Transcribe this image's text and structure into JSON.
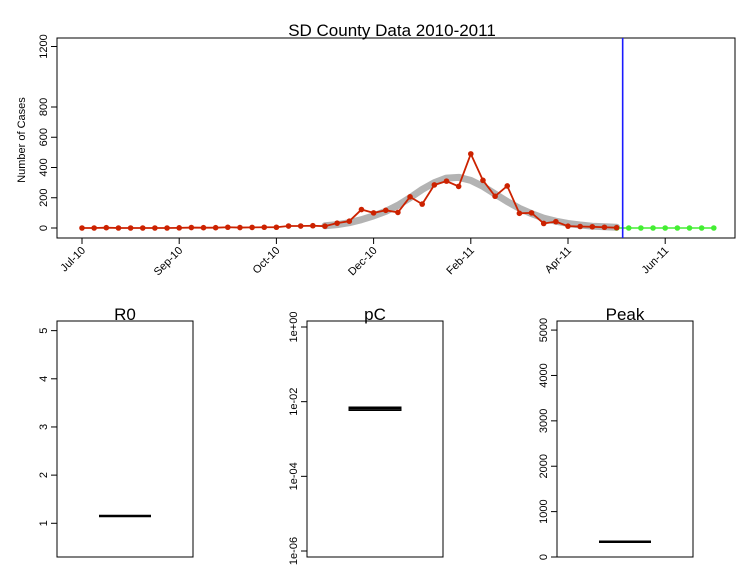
{
  "chart_data": [
    {
      "type": "line",
      "title": "SD County Data 2010-2011",
      "xlabel": "",
      "ylabel": "Number of Cases",
      "ylim": [
        0,
        1200
      ],
      "y_ticks": [
        0,
        200,
        400,
        600,
        800,
        1200
      ],
      "x_tick_labels": [
        "Jul-10",
        "Sep-10",
        "Oct-10",
        "Dec-10",
        "Feb-11",
        "Apr-11",
        "Jun-11"
      ],
      "x_tick_weeks": [
        0,
        8,
        16,
        24,
        32,
        40,
        48
      ],
      "grid": false,
      "series": [
        {
          "kind": "observed",
          "color": "#cc2200",
          "x_weeks": [
            0,
            1,
            2,
            3,
            4,
            5,
            6,
            7,
            8,
            9,
            10,
            11,
            12,
            13,
            14,
            15,
            16,
            17,
            18,
            19,
            20,
            21,
            22,
            23,
            24,
            25,
            26,
            27,
            28,
            29,
            30,
            31,
            32,
            33,
            34,
            35,
            36,
            37,
            38,
            39,
            40,
            41,
            42,
            43,
            44
          ],
          "values": [
            0,
            0,
            2,
            0,
            0,
            0,
            0,
            0,
            1,
            3,
            2,
            2,
            5,
            3,
            4,
            5,
            5,
            13,
            13,
            15,
            12,
            32,
            45,
            122,
            100,
            117,
            103,
            206,
            158,
            285,
            310,
            275,
            490,
            315,
            210,
            278,
            97,
            100,
            30,
            42,
            12,
            10,
            8,
            5,
            2
          ]
        },
        {
          "kind": "model fit",
          "color": "#b3b3b3",
          "x_weeks": [
            20,
            21,
            22,
            23,
            24,
            25,
            26,
            27,
            28,
            29,
            30,
            31,
            32,
            33,
            34,
            35,
            36,
            37,
            38,
            39,
            40,
            41,
            42,
            43,
            44
          ],
          "values": [
            15,
            22,
            35,
            55,
            80,
            110,
            150,
            200,
            255,
            300,
            330,
            335,
            315,
            275,
            225,
            175,
            130,
            95,
            65,
            45,
            30,
            20,
            12,
            8,
            5
          ]
        },
        {
          "kind": "forecast",
          "color": "#44ee33",
          "x_weeks": [
            44,
            45,
            46,
            47,
            48,
            49,
            50,
            51,
            52
          ],
          "values": [
            0,
            0,
            0,
            0,
            0,
            0,
            0,
            0,
            0
          ]
        }
      ],
      "annotations": [
        {
          "kind": "vertical-line",
          "x_week": 44.5,
          "color": "#1a1aff"
        }
      ]
    },
    {
      "type": "boxplot",
      "title": "R0",
      "ylim": [
        0.3,
        5.2
      ],
      "y_ticks": [
        1,
        2,
        3,
        4,
        5
      ],
      "values": {
        "median": 1.15
      }
    },
    {
      "type": "boxplot",
      "title": "pC",
      "scale": "log",
      "ylim": [
        1e-06,
        1
      ],
      "y_ticks": [
        "1e-06",
        "1e-04",
        "1e-02",
        "1e+00"
      ],
      "values": {
        "median": 0.0065,
        "q1": 0.0058,
        "q3": 0.0072
      }
    },
    {
      "type": "boxplot",
      "title": "Peak",
      "ylim": [
        0,
        5200
      ],
      "y_ticks": [
        0,
        1000,
        2000,
        3000,
        4000,
        5000
      ],
      "values": {
        "median": 335
      }
    }
  ]
}
